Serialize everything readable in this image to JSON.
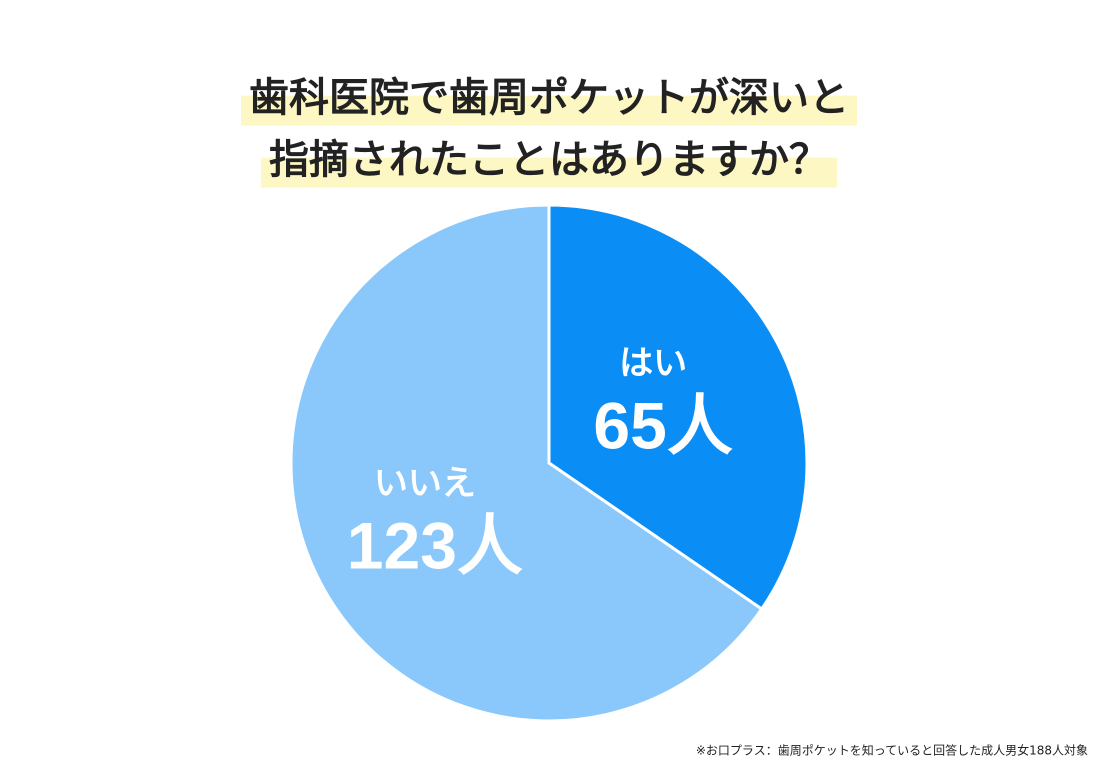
{
  "chart_data": {
    "type": "pie",
    "title": [
      "歯科医院で歯周ポケットが深いと",
      "指摘されたことはありますか？"
    ],
    "categories": [
      "はい",
      "いいえ"
    ],
    "values": [
      65,
      123
    ],
    "value_labels": [
      "65人",
      "123人"
    ],
    "colors": [
      "#0a8ef6",
      "#8ac8fb"
    ],
    "note": "※お口プラス：歯周ポケットを知っていると回答した成人男女188人対象"
  }
}
